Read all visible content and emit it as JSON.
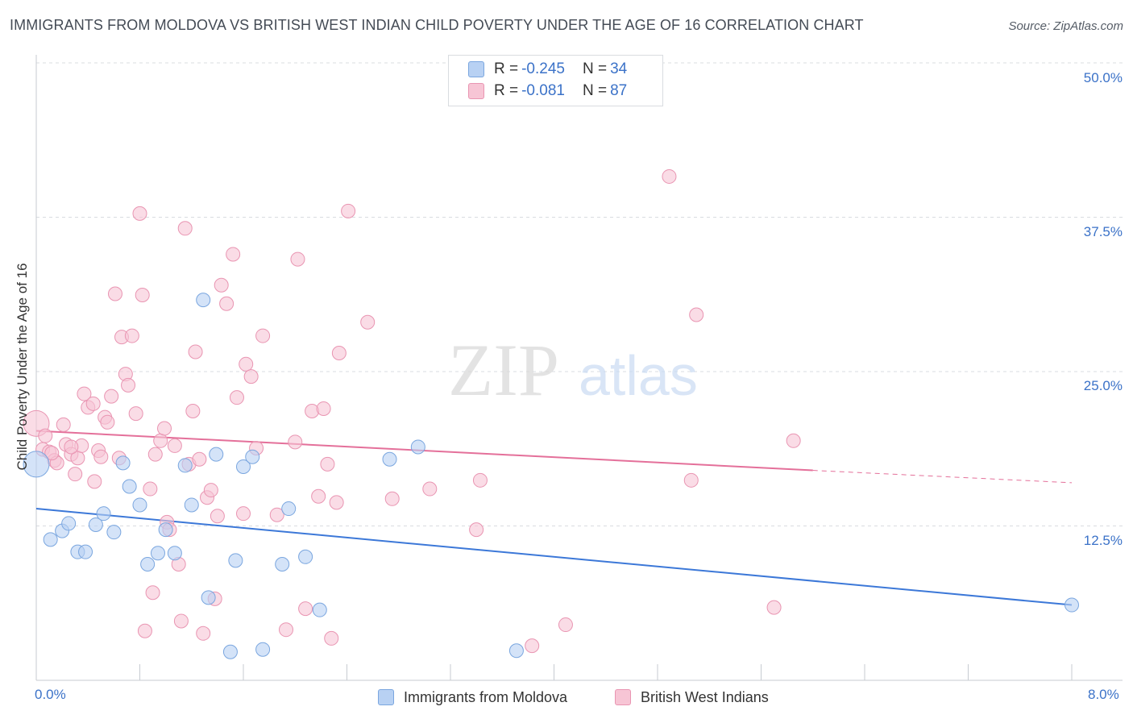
{
  "title": "IMMIGRANTS FROM MOLDOVA VS BRITISH WEST INDIAN CHILD POVERTY UNDER THE AGE OF 16 CORRELATION CHART",
  "source": "Source: ZipAtlas.com",
  "watermark": {
    "zip": "ZIP",
    "atlas": "atlas"
  },
  "colors": {
    "blue_fill": "#b8d1f3",
    "blue_stroke": "#7aa6df",
    "blue_line": "#3c78d8",
    "pink_fill": "#f7c5d5",
    "pink_stroke": "#e995b2",
    "pink_line": "#e4709a",
    "axis_text": "#3b72c8",
    "grid": "#d9dce0"
  },
  "legend_top": {
    "rows": [
      {
        "r_label": "R = ",
        "r_value": "-0.245",
        "n_label": "N = ",
        "n_value": "34",
        "color": "#b8d1f3",
        "border": "#7aa6df"
      },
      {
        "r_label": "R = ",
        "r_value": "-0.081",
        "n_label": "N = ",
        "n_value": "87",
        "color": "#f7c5d5",
        "border": "#e995b2"
      }
    ]
  },
  "legend_bottom": [
    {
      "label": "Immigrants from Moldova",
      "color": "#b8d1f3",
      "border": "#7aa6df"
    },
    {
      "label": "British West Indians",
      "color": "#f7c5d5",
      "border": "#e995b2"
    }
  ],
  "axes": {
    "y_label": "Child Poverty Under the Age of 16",
    "y_ticks": [
      "50.0%",
      "37.5%",
      "25.0%",
      "12.5%"
    ],
    "x_ticks": [
      "0.0%",
      "8.0%"
    ]
  },
  "chart_data": {
    "type": "scatter",
    "title": "IMMIGRANTS FROM MOLDOVA VS BRITISH WEST INDIAN CHILD POVERTY UNDER THE AGE OF 16 CORRELATION CHART",
    "xlabel": "",
    "ylabel": "Child Poverty Under the Age of 16",
    "xlim": [
      0,
      8
    ],
    "ylim": [
      0,
      50
    ],
    "y_tick_values": [
      12.5,
      25,
      37.5,
      50
    ],
    "x_tick_values": [
      0,
      8
    ],
    "grid": true,
    "legend_position": "top-center",
    "series": [
      {
        "name": "Immigrants from Moldova",
        "R": -0.245,
        "N": 34,
        "trend": {
          "x": [
            0,
            8
          ],
          "y": [
            13.9,
            6.1
          ]
        },
        "points": [
          {
            "x": 0.0,
            "y": 17.5,
            "big": true
          },
          {
            "x": 0.11,
            "y": 11.4
          },
          {
            "x": 0.2,
            "y": 12.1
          },
          {
            "x": 0.25,
            "y": 12.7
          },
          {
            "x": 0.32,
            "y": 10.4
          },
          {
            "x": 0.38,
            "y": 10.4
          },
          {
            "x": 0.46,
            "y": 12.6
          },
          {
            "x": 0.52,
            "y": 13.5
          },
          {
            "x": 0.6,
            "y": 12.0
          },
          {
            "x": 0.67,
            "y": 17.6
          },
          {
            "x": 0.72,
            "y": 15.7
          },
          {
            "x": 0.8,
            "y": 14.2
          },
          {
            "x": 0.86,
            "y": 9.4
          },
          {
            "x": 0.94,
            "y": 10.3
          },
          {
            "x": 1.0,
            "y": 12.2
          },
          {
            "x": 1.07,
            "y": 10.3
          },
          {
            "x": 1.15,
            "y": 17.4
          },
          {
            "x": 1.2,
            "y": 14.2
          },
          {
            "x": 1.29,
            "y": 30.8
          },
          {
            "x": 1.33,
            "y": 6.7
          },
          {
            "x": 1.39,
            "y": 18.3
          },
          {
            "x": 1.5,
            "y": 2.3
          },
          {
            "x": 1.54,
            "y": 9.7
          },
          {
            "x": 1.6,
            "y": 17.3
          },
          {
            "x": 1.67,
            "y": 18.1
          },
          {
            "x": 1.75,
            "y": 2.5
          },
          {
            "x": 1.9,
            "y": 9.4
          },
          {
            "x": 1.95,
            "y": 13.9
          },
          {
            "x": 2.08,
            "y": 10.0
          },
          {
            "x": 2.19,
            "y": 5.7
          },
          {
            "x": 2.73,
            "y": 17.9
          },
          {
            "x": 2.95,
            "y": 18.9
          },
          {
            "x": 3.71,
            "y": 2.4
          },
          {
            "x": 8.0,
            "y": 6.1
          }
        ]
      },
      {
        "name": "British West Indians",
        "R": -0.081,
        "N": 87,
        "trend": {
          "x": [
            0,
            6.0
          ],
          "y": [
            20.2,
            17.0
          ]
        },
        "trend_dashed": {
          "x": [
            6.0,
            8.0
          ],
          "y": [
            17.0,
            16.0
          ]
        },
        "points": [
          {
            "x": 0.0,
            "y": 20.8,
            "big": true
          },
          {
            "x": 0.05,
            "y": 18.7
          },
          {
            "x": 0.07,
            "y": 19.8
          },
          {
            "x": 0.1,
            "y": 18.5
          },
          {
            "x": 0.14,
            "y": 17.8
          },
          {
            "x": 0.16,
            "y": 17.6
          },
          {
            "x": 0.21,
            "y": 20.7
          },
          {
            "x": 0.23,
            "y": 19.1
          },
          {
            "x": 0.27,
            "y": 18.3
          },
          {
            "x": 0.3,
            "y": 16.7
          },
          {
            "x": 0.32,
            "y": 18.0
          },
          {
            "x": 0.35,
            "y": 19.0
          },
          {
            "x": 0.37,
            "y": 23.2
          },
          {
            "x": 0.4,
            "y": 22.1
          },
          {
            "x": 0.44,
            "y": 22.4
          },
          {
            "x": 0.45,
            "y": 16.1
          },
          {
            "x": 0.48,
            "y": 18.6
          },
          {
            "x": 0.5,
            "y": 18.1
          },
          {
            "x": 0.53,
            "y": 21.3
          },
          {
            "x": 0.55,
            "y": 20.9
          },
          {
            "x": 0.58,
            "y": 23.0
          },
          {
            "x": 0.61,
            "y": 31.3
          },
          {
            "x": 0.64,
            "y": 18.0
          },
          {
            "x": 0.66,
            "y": 27.8
          },
          {
            "x": 0.69,
            "y": 24.8
          },
          {
            "x": 0.71,
            "y": 23.9
          },
          {
            "x": 0.74,
            "y": 27.9
          },
          {
            "x": 0.77,
            "y": 21.6
          },
          {
            "x": 0.8,
            "y": 37.8
          },
          {
            "x": 0.82,
            "y": 31.2
          },
          {
            "x": 0.84,
            "y": 4.0
          },
          {
            "x": 0.88,
            "y": 15.5
          },
          {
            "x": 0.9,
            "y": 7.1
          },
          {
            "x": 0.92,
            "y": 18.3
          },
          {
            "x": 0.96,
            "y": 19.4
          },
          {
            "x": 0.99,
            "y": 20.4
          },
          {
            "x": 1.01,
            "y": 12.8
          },
          {
            "x": 1.03,
            "y": 12.2
          },
          {
            "x": 1.07,
            "y": 19.0
          },
          {
            "x": 1.1,
            "y": 9.4
          },
          {
            "x": 1.12,
            "y": 4.8
          },
          {
            "x": 1.15,
            "y": 36.6
          },
          {
            "x": 1.18,
            "y": 17.5
          },
          {
            "x": 1.21,
            "y": 21.8
          },
          {
            "x": 1.23,
            "y": 26.6
          },
          {
            "x": 1.26,
            "y": 17.9
          },
          {
            "x": 1.29,
            "y": 3.8
          },
          {
            "x": 1.32,
            "y": 14.8
          },
          {
            "x": 1.35,
            "y": 15.4
          },
          {
            "x": 1.38,
            "y": 6.6
          },
          {
            "x": 1.4,
            "y": 13.3
          },
          {
            "x": 1.43,
            "y": 32.0
          },
          {
            "x": 1.47,
            "y": 30.5
          },
          {
            "x": 1.52,
            "y": 34.5
          },
          {
            "x": 1.55,
            "y": 22.9
          },
          {
            "x": 1.6,
            "y": 13.5
          },
          {
            "x": 1.62,
            "y": 25.6
          },
          {
            "x": 1.66,
            "y": 24.6
          },
          {
            "x": 1.7,
            "y": 18.8
          },
          {
            "x": 1.75,
            "y": 27.9
          },
          {
            "x": 1.86,
            "y": 13.4
          },
          {
            "x": 1.93,
            "y": 4.1
          },
          {
            "x": 2.0,
            "y": 19.3
          },
          {
            "x": 2.02,
            "y": 34.1
          },
          {
            "x": 2.08,
            "y": 5.8
          },
          {
            "x": 2.13,
            "y": 21.8
          },
          {
            "x": 2.18,
            "y": 14.9
          },
          {
            "x": 2.22,
            "y": 22.0
          },
          {
            "x": 2.25,
            "y": 17.5
          },
          {
            "x": 2.28,
            "y": 3.4
          },
          {
            "x": 2.32,
            "y": 14.4
          },
          {
            "x": 2.34,
            "y": 26.5
          },
          {
            "x": 2.41,
            "y": 38.0
          },
          {
            "x": 2.56,
            "y": 29.0
          },
          {
            "x": 2.75,
            "y": 14.7
          },
          {
            "x": 3.04,
            "y": 15.5
          },
          {
            "x": 3.4,
            "y": 12.2
          },
          {
            "x": 3.43,
            "y": 16.2
          },
          {
            "x": 3.83,
            "y": 2.8
          },
          {
            "x": 4.09,
            "y": 4.5
          },
          {
            "x": 4.89,
            "y": 40.8
          },
          {
            "x": 5.06,
            "y": 16.2
          },
          {
            "x": 5.1,
            "y": 29.6
          },
          {
            "x": 5.7,
            "y": 5.9
          },
          {
            "x": 5.85,
            "y": 19.4
          },
          {
            "x": 0.12,
            "y": 18.4
          },
          {
            "x": 0.27,
            "y": 18.9
          }
        ]
      }
    ]
  }
}
